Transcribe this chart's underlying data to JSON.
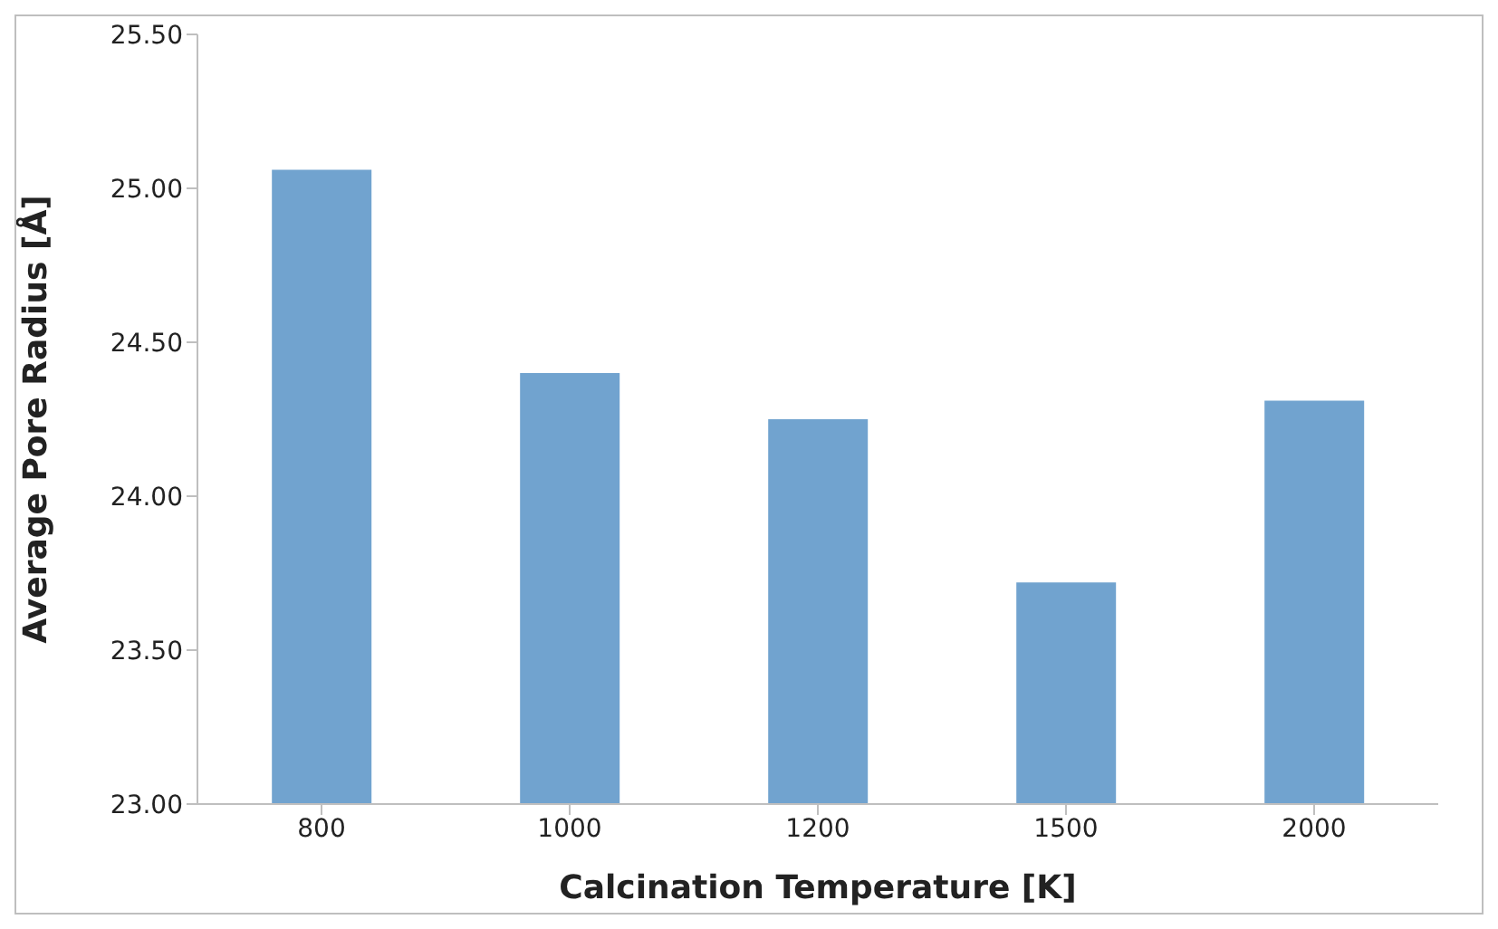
{
  "chart_data": {
    "type": "bar",
    "xlabel": "Calcination Temperature [K]",
    "ylabel": "Average Pore Radius [Å]",
    "categories": [
      "800",
      "1000",
      "1200",
      "1500",
      "2000"
    ],
    "values": [
      25.06,
      24.4,
      24.25,
      23.72,
      24.31
    ],
    "color": "#71a3cf",
    "ylim": [
      23.0,
      25.5
    ],
    "yticks": [
      {
        "value": 23.0,
        "label": "23.00"
      },
      {
        "value": 23.5,
        "label": "23.50"
      },
      {
        "value": 24.0,
        "label": "24.00"
      },
      {
        "value": 24.5,
        "label": "24.50"
      },
      {
        "value": 25.0,
        "label": "25.00"
      },
      {
        "value": 25.5,
        "label": "25.50"
      }
    ],
    "grid": false,
    "legend": false
  }
}
